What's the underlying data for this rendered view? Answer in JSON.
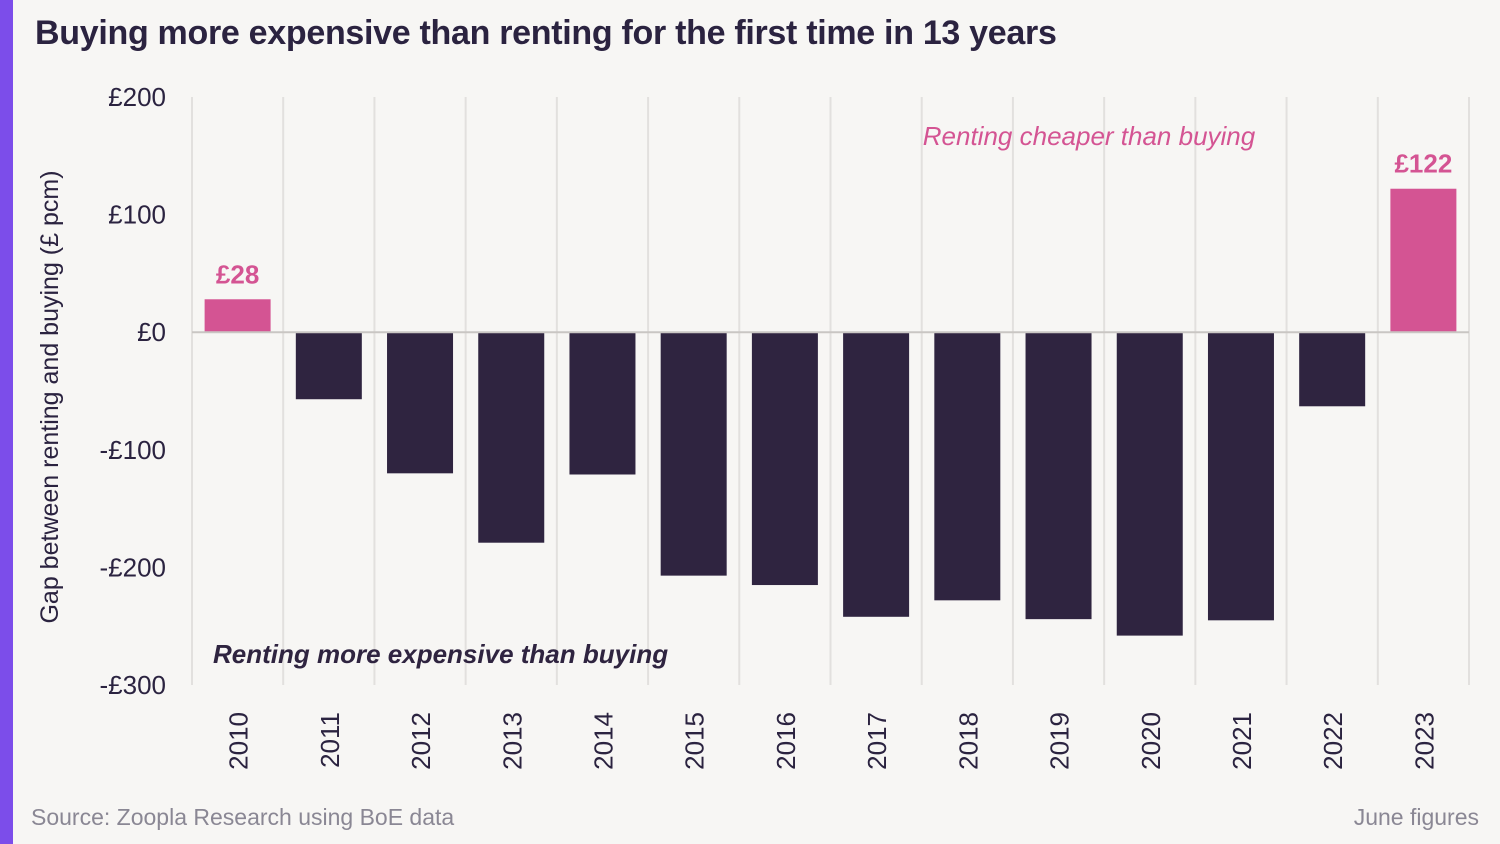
{
  "title": "Buying more expensive than renting for the first time in 13 years",
  "source": "Source: Zoopla Research using BoE data",
  "note": "June figures",
  "colors": {
    "accent": "#7c4dea",
    "positive": "#d45493",
    "negative": "#2f2440",
    "grid": "#e2e0de",
    "text": "#2b2340",
    "muted": "#8a8794"
  },
  "chart_data": {
    "type": "bar",
    "title": "Buying more expensive than renting for the first time in 13 years",
    "xlabel": "",
    "ylabel": "Gap between renting and buying (£ pcm)",
    "categories": [
      "2010",
      "2011",
      "2012",
      "2013",
      "2014",
      "2015",
      "2016",
      "2017",
      "2018",
      "2019",
      "2020",
      "2021",
      "2022",
      "2023"
    ],
    "values": [
      28,
      -57,
      -120,
      -179,
      -121,
      -207,
      -215,
      -242,
      -228,
      -244,
      -258,
      -245,
      -63,
      122
    ],
    "ylim": [
      -300,
      200
    ],
    "yticks": [
      200,
      100,
      0,
      -100,
      -200,
      -300
    ],
    "ytick_labels": [
      "£200",
      "£100",
      "£0",
      "-£100",
      "-£200",
      "-£300"
    ],
    "data_labels": [
      {
        "category": "2010",
        "text": "£28"
      },
      {
        "category": "2023",
        "text": "£122"
      }
    ],
    "annotations": {
      "positive_region": "Renting cheaper than buying",
      "negative_region": "Renting more expensive than buying"
    },
    "grid": true
  }
}
